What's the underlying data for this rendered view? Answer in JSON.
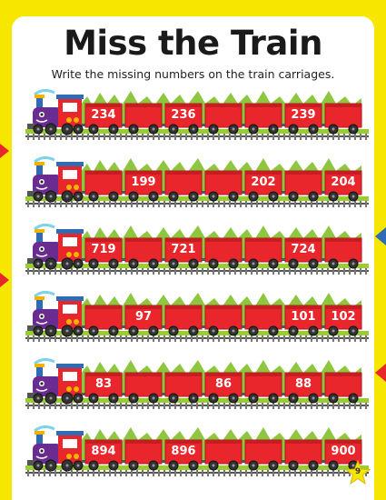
{
  "title": "Miss the Train",
  "instructions": "Write the missing numbers on the train carriages.",
  "colors": {
    "background": "#f7e600",
    "carriage": "#e8262b",
    "engine": "#6a2c91",
    "grass": "#8dc63f",
    "page_badge": "#f7e600"
  },
  "trains": [
    {
      "carriages": [
        "234",
        "",
        "236",
        "",
        "",
        "239",
        ""
      ]
    },
    {
      "carriages": [
        "",
        "199",
        "",
        "",
        "202",
        "",
        "204"
      ]
    },
    {
      "carriages": [
        "719",
        "",
        "721",
        "",
        "",
        "724",
        ""
      ]
    },
    {
      "carriages": [
        "",
        "97",
        "",
        "",
        "",
        "101",
        "102"
      ]
    },
    {
      "carriages": [
        "83",
        "",
        "",
        "86",
        "",
        "88",
        ""
      ]
    },
    {
      "carriages": [
        "894",
        "",
        "896",
        "",
        "",
        "",
        "900"
      ]
    }
  ],
  "page_number": "9"
}
